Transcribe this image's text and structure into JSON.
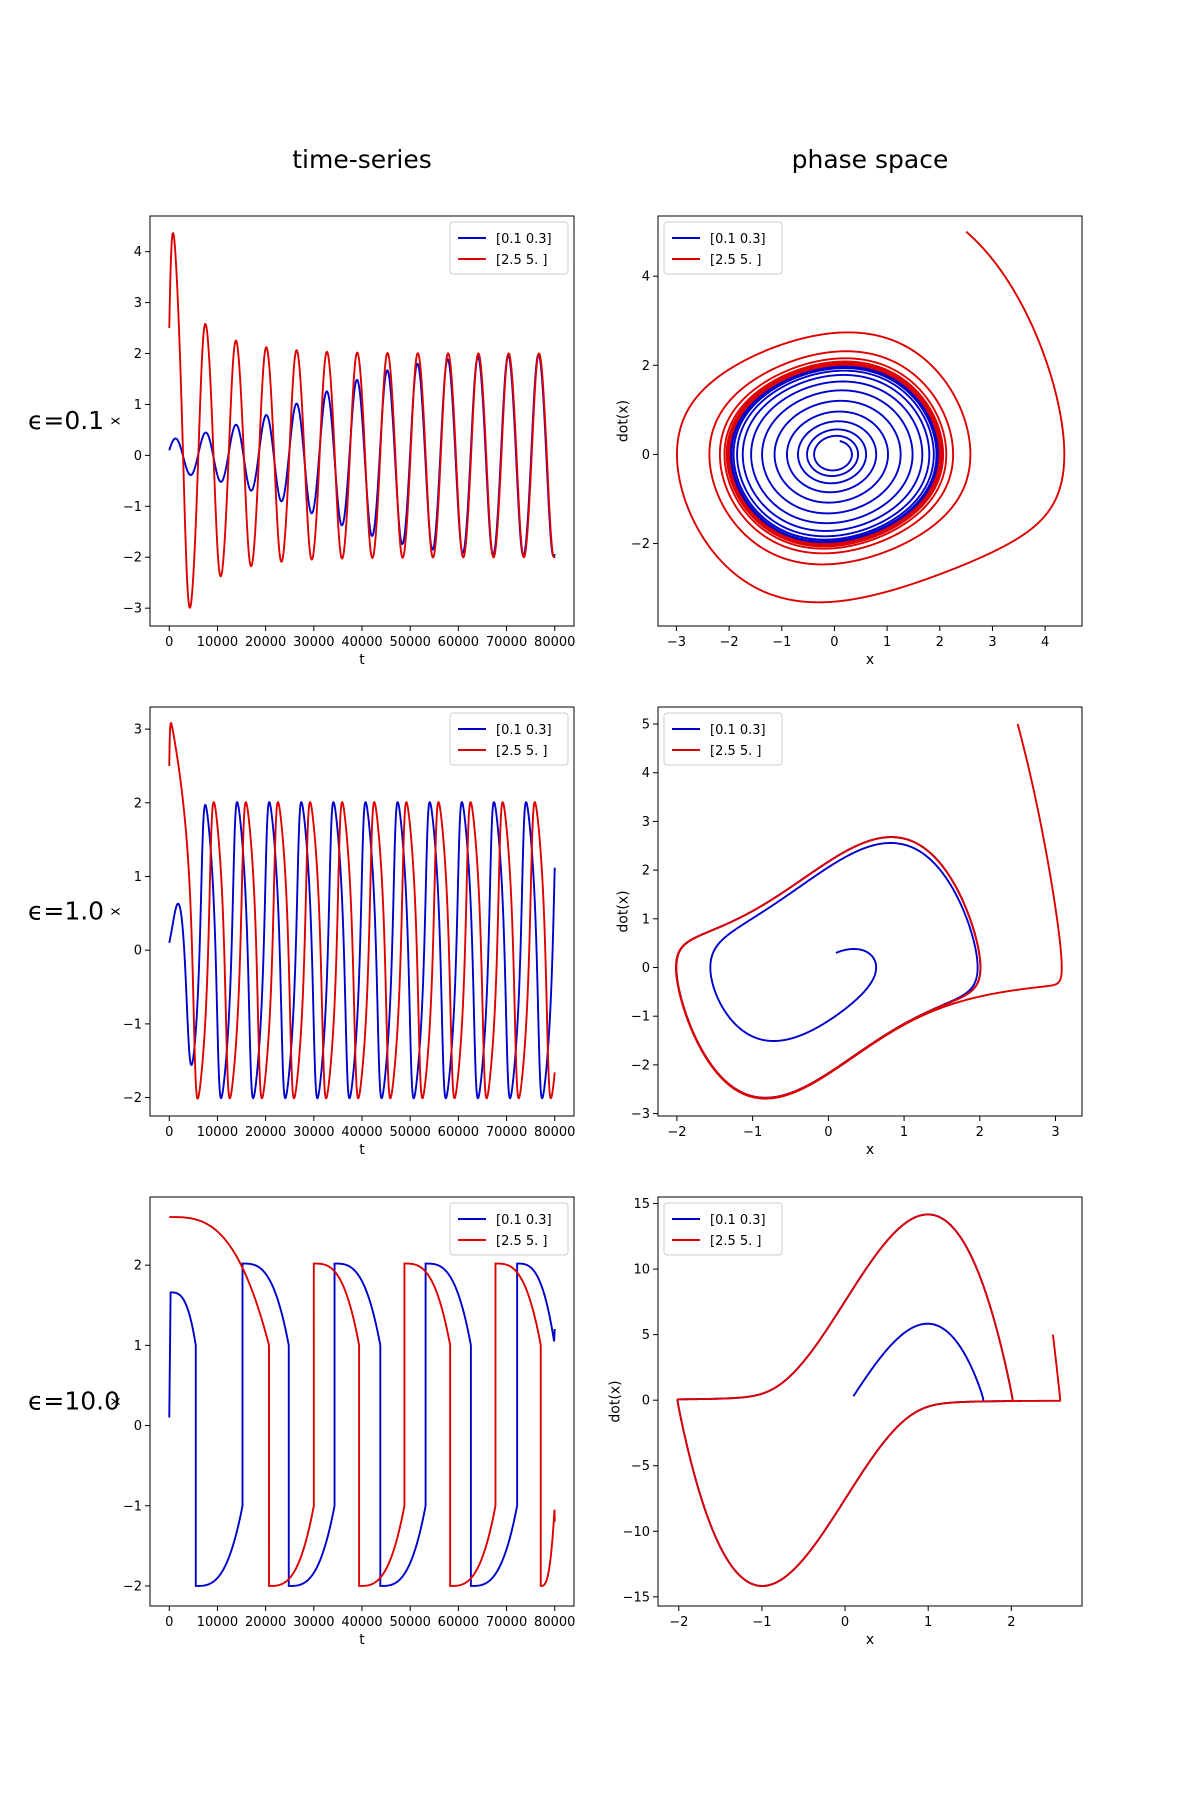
{
  "figure": {
    "column_titles": [
      "time-series",
      "phase space"
    ],
    "row_labels": [
      "ϵ=0.1",
      "ϵ=1.0",
      "ϵ=10.0"
    ]
  },
  "legend_entries": [
    "[0.1 0.3]",
    "[2.5 5. ]"
  ],
  "series_colors": [
    "#0000cc",
    "#dd0000"
  ],
  "chart_data": [
    {
      "type": "line",
      "panel": "time-series",
      "epsilon": 0.1,
      "xlabel": "t",
      "ylabel": "x",
      "xlim": [
        -4000,
        84000
      ],
      "ylim": [
        -3.35,
        4.7
      ],
      "xticks": [
        0,
        10000,
        20000,
        30000,
        40000,
        50000,
        60000,
        70000,
        80000
      ],
      "yticks": [
        -3,
        -2,
        -1,
        0,
        1,
        2,
        3,
        4
      ],
      "legend": "top-right",
      "grid": false,
      "series": [
        {
          "name": "[0.1 0.3]",
          "color": "#0000cc",
          "model": "vdp",
          "init": [
            0.1,
            0.3
          ]
        },
        {
          "name": "[2.5 5. ]",
          "color": "#dd0000",
          "model": "vdp",
          "init": [
            2.5,
            5.0
          ]
        }
      ]
    },
    {
      "type": "line",
      "panel": "phase space",
      "epsilon": 0.1,
      "xlabel": "x",
      "ylabel": "dot(x)",
      "xlim": [
        -3.35,
        4.7
      ],
      "ylim": [
        -3.85,
        5.35
      ],
      "xticks": [
        -3,
        -2,
        -1,
        0,
        1,
        2,
        3,
        4
      ],
      "yticks": [
        -2,
        0,
        2,
        4
      ],
      "legend": "top-left",
      "grid": false,
      "series": [
        {
          "name": "[0.1 0.3]",
          "color": "#0000cc",
          "model": "vdp",
          "init": [
            0.1,
            0.3
          ]
        },
        {
          "name": "[2.5 5. ]",
          "color": "#dd0000",
          "model": "vdp",
          "init": [
            2.5,
            5.0
          ]
        }
      ]
    },
    {
      "type": "line",
      "panel": "time-series",
      "epsilon": 1.0,
      "xlabel": "t",
      "ylabel": "x",
      "xlim": [
        -4000,
        84000
      ],
      "ylim": [
        -2.25,
        3.3
      ],
      "xticks": [
        0,
        10000,
        20000,
        30000,
        40000,
        50000,
        60000,
        70000,
        80000
      ],
      "yticks": [
        -2,
        -1,
        0,
        1,
        2,
        3
      ],
      "legend": "top-right",
      "grid": false,
      "series": [
        {
          "name": "[0.1 0.3]",
          "color": "#0000cc",
          "model": "vdp",
          "init": [
            0.1,
            0.3
          ]
        },
        {
          "name": "[2.5 5. ]",
          "color": "#dd0000",
          "model": "vdp",
          "init": [
            2.5,
            5.0
          ]
        }
      ]
    },
    {
      "type": "line",
      "panel": "phase space",
      "epsilon": 1.0,
      "xlabel": "x",
      "ylabel": "dot(x)",
      "xlim": [
        -2.25,
        3.35
      ],
      "ylim": [
        -3.05,
        5.35
      ],
      "xticks": [
        -2,
        -1,
        0,
        1,
        2,
        3
      ],
      "yticks": [
        -3,
        -2,
        -1,
        0,
        1,
        2,
        3,
        4,
        5
      ],
      "legend": "top-left",
      "grid": false,
      "series": [
        {
          "name": "[0.1 0.3]",
          "color": "#0000cc",
          "model": "vdp",
          "init": [
            0.1,
            0.3
          ]
        },
        {
          "name": "[2.5 5. ]",
          "color": "#dd0000",
          "model": "vdp",
          "init": [
            2.5,
            5.0
          ]
        }
      ]
    },
    {
      "type": "line",
      "panel": "time-series",
      "epsilon": 10.0,
      "xlabel": "t",
      "ylabel": "x",
      "xlim": [
        -4000,
        84000
      ],
      "ylim": [
        -2.25,
        2.85
      ],
      "xticks": [
        0,
        10000,
        20000,
        30000,
        40000,
        50000,
        60000,
        70000,
        80000
      ],
      "yticks": [
        -2,
        -1,
        0,
        1,
        2
      ],
      "legend": "top-right",
      "grid": false,
      "series": [
        {
          "name": "[0.1 0.3]",
          "color": "#0000cc",
          "model": "relax",
          "init": [
            0.1,
            0.3
          ],
          "flips": [
            [
              0,
              1.66
            ],
            [
              5500,
              -2.0
            ],
            [
              15200,
              2.02
            ],
            [
              24800,
              -2.0
            ],
            [
              34300,
              2.02
            ],
            [
              43800,
              -2.0
            ],
            [
              53200,
              2.02
            ],
            [
              62600,
              -2.0
            ],
            [
              72200,
              2.02
            ]
          ],
          "t_end": 80000
        },
        {
          "name": "[2.5 5. ]",
          "color": "#dd0000",
          "model": "relax",
          "init": [
            2.5,
            5.0
          ],
          "flips": [
            [
              0,
              2.6
            ],
            [
              20700,
              -2.0
            ],
            [
              30000,
              2.02
            ],
            [
              39400,
              -2.0
            ],
            [
              48800,
              2.02
            ],
            [
              58300,
              -2.0
            ],
            [
              67700,
              2.02
            ],
            [
              77100,
              -2.0
            ]
          ],
          "t_end": 80000
        }
      ]
    },
    {
      "type": "line",
      "panel": "phase space",
      "epsilon": 10.0,
      "xlabel": "x",
      "ylabel": "dot(x)",
      "xlim": [
        -2.25,
        2.85
      ],
      "ylim": [
        -15.7,
        15.5
      ],
      "xticks": [
        -2,
        -1,
        0,
        1,
        2
      ],
      "yticks": [
        -15,
        -10,
        -5,
        0,
        5,
        10,
        15
      ],
      "legend": "top-left",
      "grid": false,
      "series": [
        {
          "name": "[0.1 0.3]",
          "color": "#0000cc",
          "model": "vdp",
          "init": [
            0.1,
            0.3
          ]
        },
        {
          "name": "[2.5 5. ]",
          "color": "#dd0000",
          "model": "vdp",
          "init": [
            2.5,
            5.0
          ]
        }
      ]
    }
  ]
}
